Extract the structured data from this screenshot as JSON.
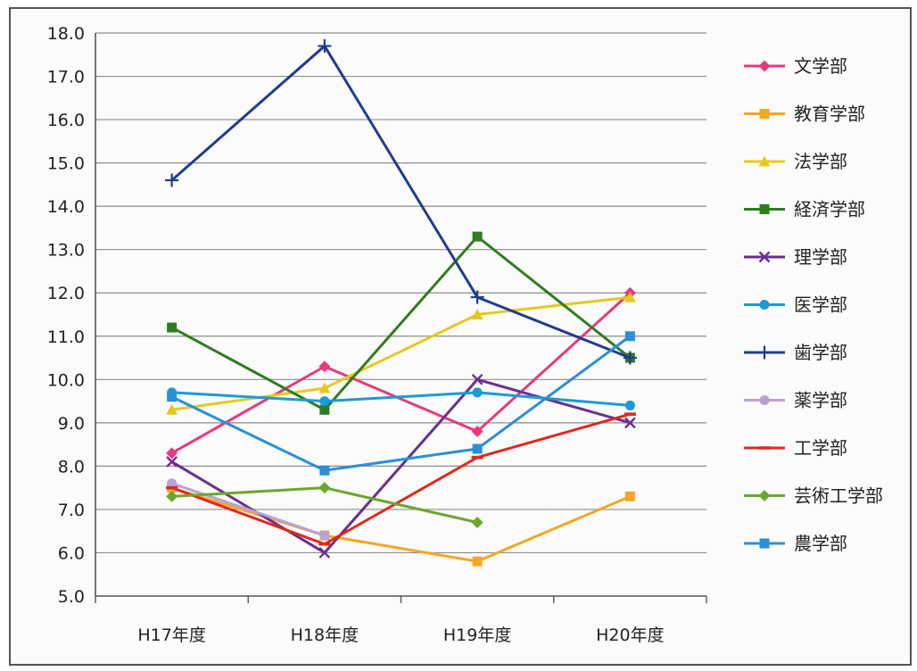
{
  "chart_data": {
    "type": "line",
    "title": "",
    "xlabel": "",
    "ylabel": "",
    "categories": [
      "H17年度",
      "H18年度",
      "H19年度",
      "H20年度"
    ],
    "ylim": [
      5.0,
      18.0
    ],
    "ytick_step": 1.0,
    "ytick_labels": [
      "5.0",
      "6.0",
      "7.0",
      "8.0",
      "9.0",
      "10.0",
      "11.0",
      "12.0",
      "13.0",
      "14.0",
      "15.0",
      "16.0",
      "17.0",
      "18.0"
    ],
    "grid": true,
    "legend_position": "right",
    "series": [
      {
        "name": "文学部",
        "color": "#e8397d",
        "marker": "diamond",
        "values": [
          8.3,
          10.3,
          8.8,
          12.0
        ]
      },
      {
        "name": "教育学部",
        "color": "#f5a623",
        "marker": "square",
        "values": [
          7.5,
          6.4,
          5.8,
          7.3
        ]
      },
      {
        "name": "法学部",
        "color": "#e8c81e",
        "marker": "triangle",
        "values": [
          9.3,
          9.8,
          11.5,
          11.9
        ]
      },
      {
        "name": "経済学部",
        "color": "#2e7d1f",
        "marker": "square",
        "values": [
          11.2,
          9.3,
          13.3,
          10.5
        ]
      },
      {
        "name": "理学部",
        "color": "#6a2f8f",
        "marker": "x",
        "values": [
          8.1,
          6.0,
          10.0,
          9.0
        ]
      },
      {
        "name": "医学部",
        "color": "#1b9ad6",
        "marker": "circle",
        "values": [
          9.7,
          9.5,
          9.7,
          9.4
        ]
      },
      {
        "name": "歯学部",
        "color": "#1f3c8f",
        "marker": "plus",
        "values": [
          14.6,
          17.7,
          11.9,
          10.5
        ]
      },
      {
        "name": "薬学部",
        "color": "#b7a3d6",
        "marker": "circle",
        "values": [
          7.6,
          6.4,
          null,
          null
        ]
      },
      {
        "name": "工学部",
        "color": "#e0281d",
        "marker": "dash",
        "values": [
          7.5,
          6.2,
          8.2,
          9.2
        ]
      },
      {
        "name": "芸術工学部",
        "color": "#6aa82c",
        "marker": "diamond",
        "values": [
          7.3,
          7.5,
          6.7,
          null
        ]
      },
      {
        "name": "農学部",
        "color": "#2a8fd6",
        "marker": "square",
        "values": [
          9.6,
          7.9,
          8.4,
          11.0
        ]
      }
    ]
  }
}
